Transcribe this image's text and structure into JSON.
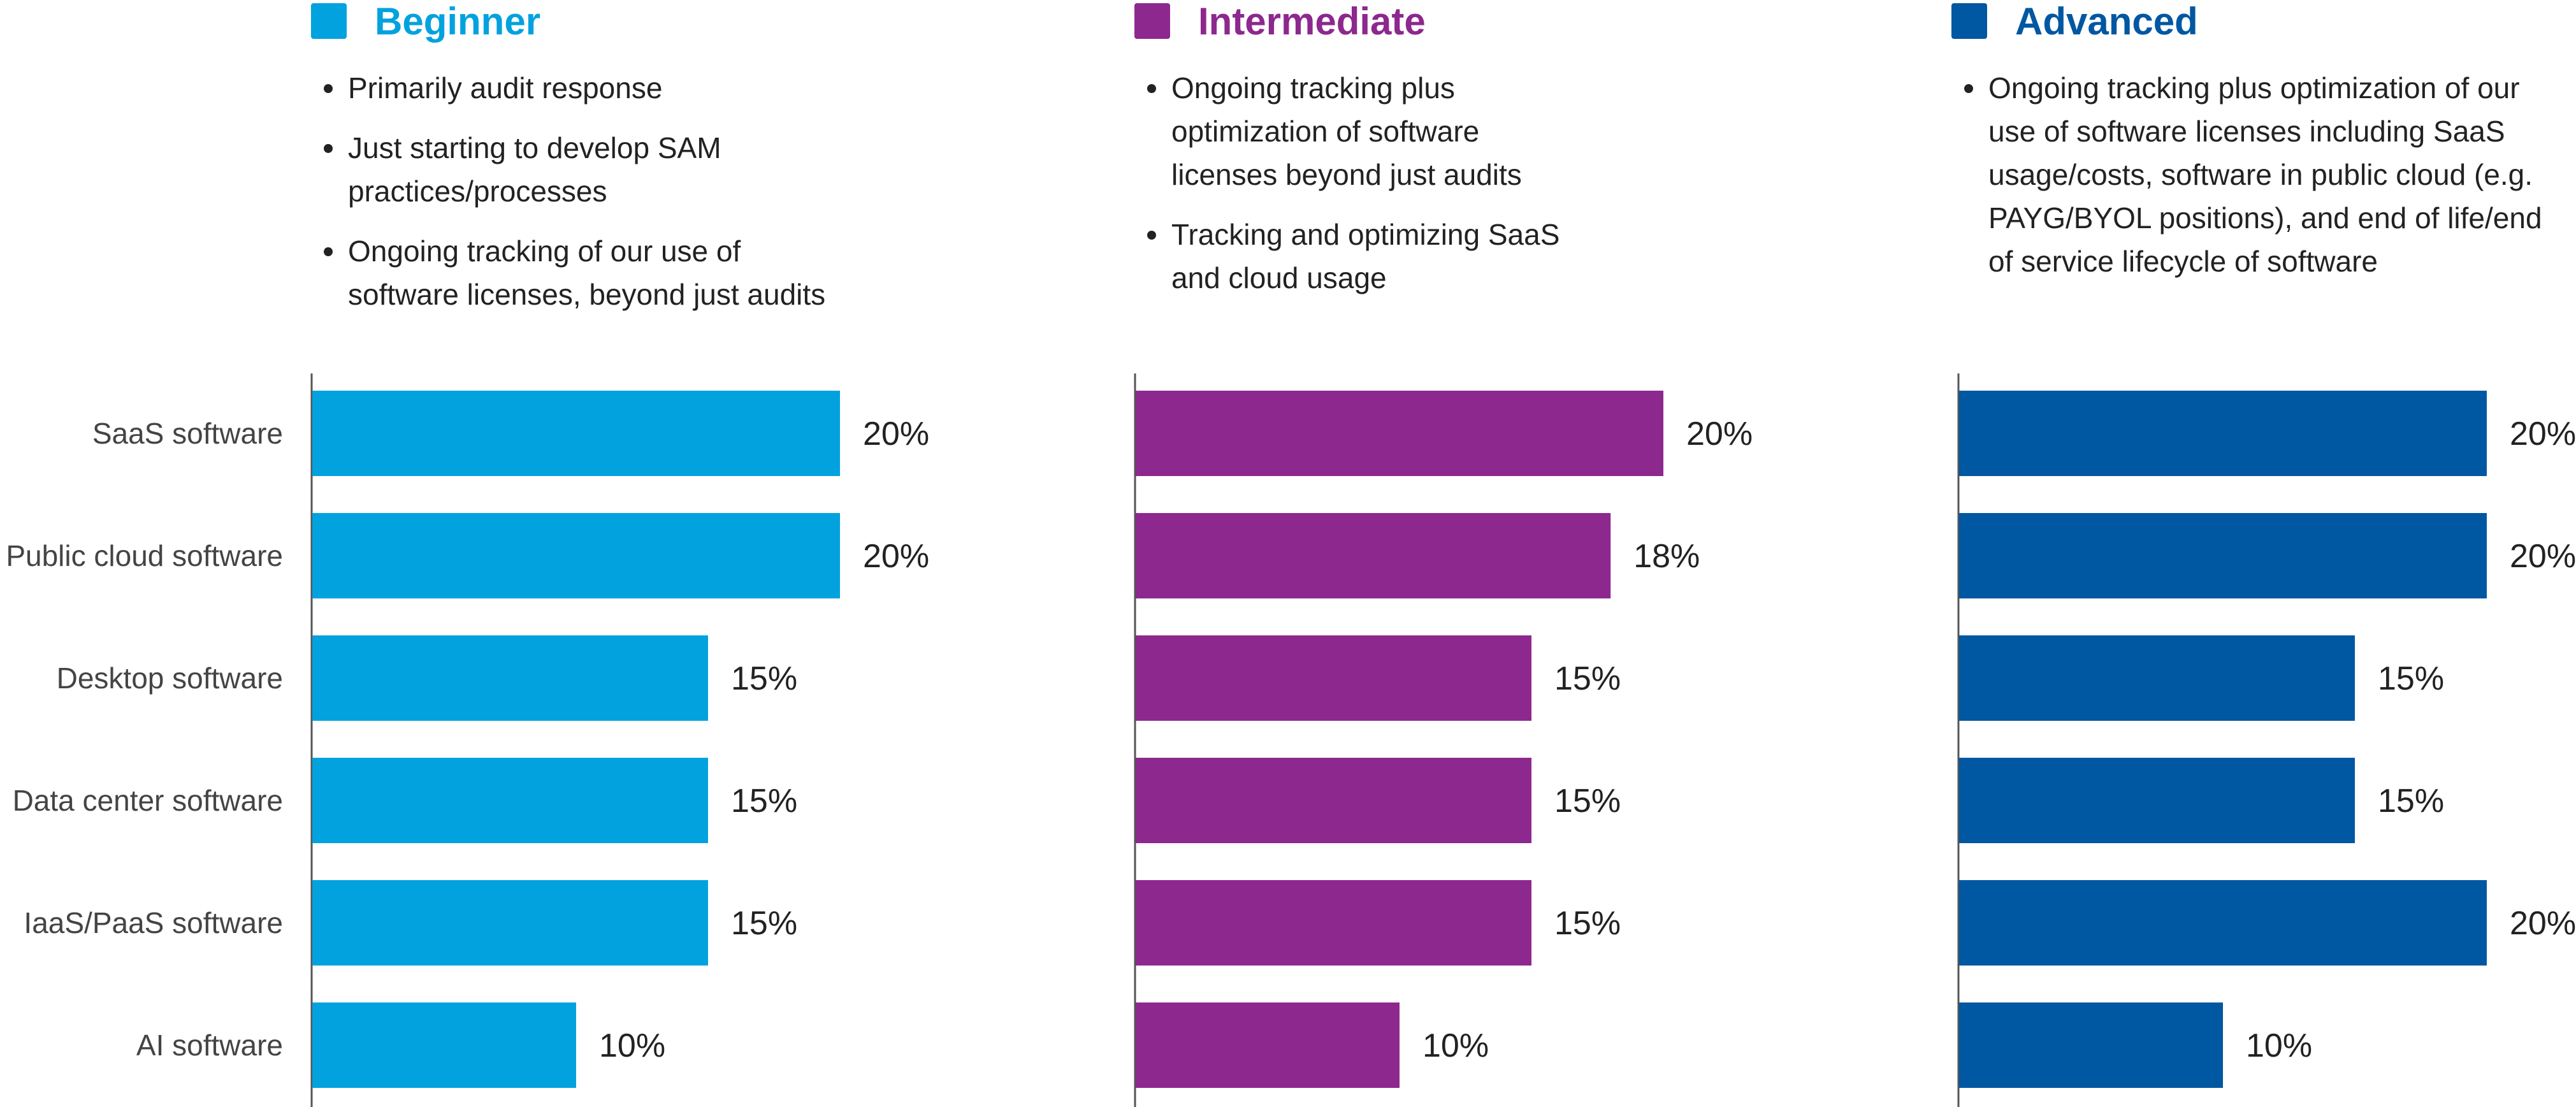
{
  "chart_data": {
    "type": "bar",
    "orientation": "horizontal",
    "categories": [
      "SaaS software",
      "Public cloud software",
      "Desktop software",
      "Data center software",
      "IaaS/PaaS software",
      "AI software"
    ],
    "value_format": "percent",
    "xlim": [
      0,
      20
    ],
    "grid": false,
    "series": [
      {
        "name": "Beginner",
        "color": "#02A2DF",
        "values": [
          20,
          20,
          15,
          15,
          15,
          10
        ],
        "labels": [
          "20%",
          "20%",
          "15%",
          "15%",
          "15%",
          "10%"
        ],
        "bullets": [
          "Primarily audit response",
          "Just starting to develop SAM practices/processes",
          "Ongoing tracking of our use of software licenses, beyond just audits"
        ]
      },
      {
        "name": "Intermediate",
        "color": "#8C288E",
        "values": [
          20,
          18,
          15,
          15,
          15,
          10
        ],
        "labels": [
          "20%",
          "18%",
          "15%",
          "15%",
          "15%",
          "10%"
        ],
        "bullets": [
          "Ongoing tracking plus optimization of software licenses beyond just audits",
          "Tracking and optimizing SaaS and cloud usage"
        ]
      },
      {
        "name": "Advanced",
        "color": "#0057A2",
        "values": [
          20,
          20,
          15,
          15,
          20,
          10
        ],
        "labels": [
          "20%",
          "20%",
          "15%",
          "15%",
          "20%",
          "10%"
        ],
        "bullets": [
          "Ongoing tracking plus optimization of our use of software licenses including SaaS usage/costs, software in public cloud (e.g. PAYG/BYOL positions), and end of life/end of service lifecycle of software"
        ]
      }
    ]
  }
}
